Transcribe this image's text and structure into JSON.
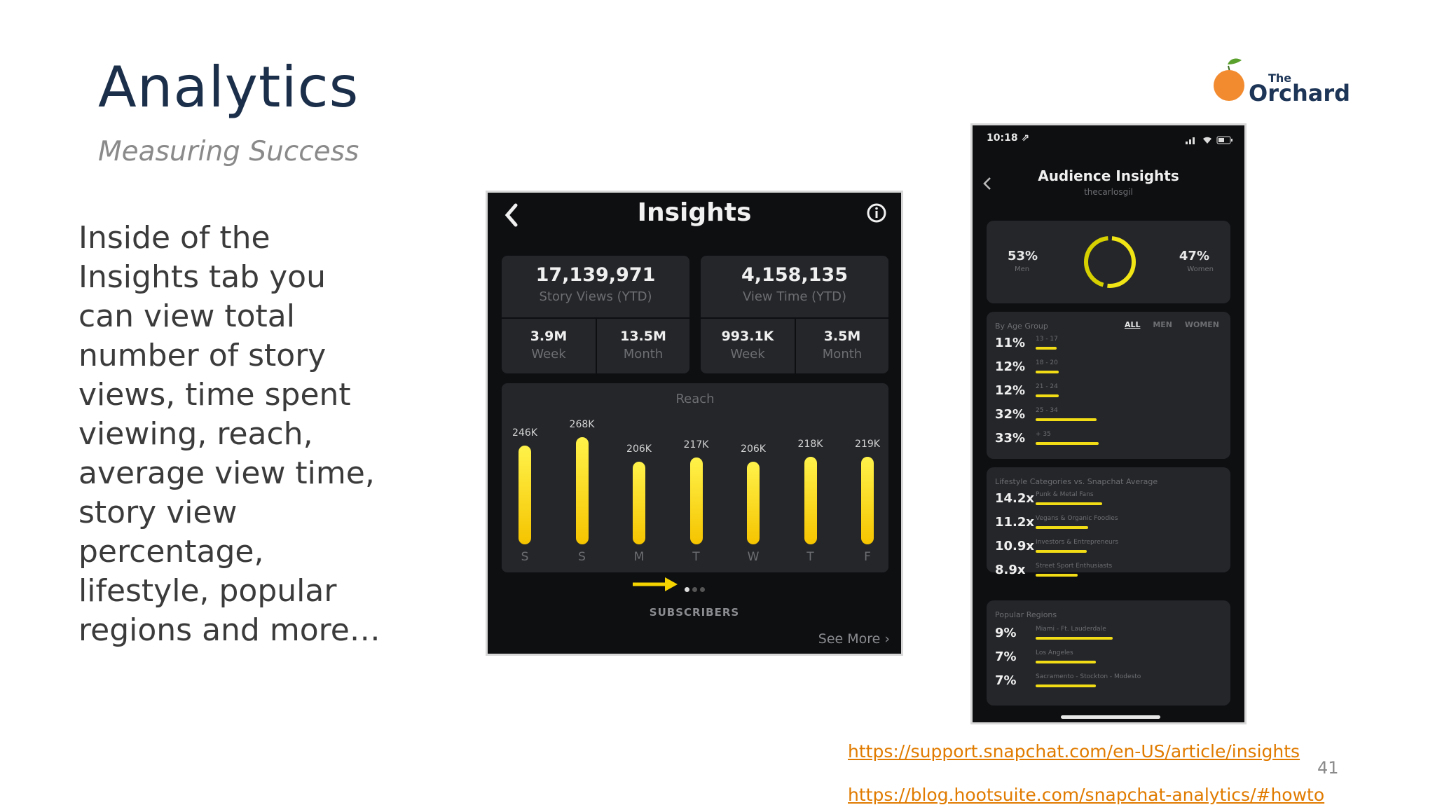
{
  "slide": {
    "title": "Analytics",
    "subtitle": "Measuring Success",
    "body": "Inside of the Insights tab you can view total number of story views, time spent viewing, reach, average view time, story view percentage, lifestyle, popular regions and more…",
    "logo_the": "The",
    "logo_main": "Orchard",
    "links": [
      "https://support.snapchat.com/en-US/article/insights",
      "https://blog.hootsuite.com/snapchat-analytics/#howto"
    ],
    "page_number": "41",
    "colors": {
      "title": "#1c2f4a",
      "link": "#e07b00",
      "accent_yellow": "#f5d400",
      "phone_bg": "#0e0f11"
    }
  },
  "insights": {
    "back_icon": "chevron-left-icon",
    "title": "Insights",
    "info_icon": "info-icon",
    "story_views": {
      "value": "17,139,971",
      "label": "Story Views (YTD)",
      "week_value": "3.9M",
      "week_label": "Week",
      "month_value": "13.5M",
      "month_label": "Month"
    },
    "view_time": {
      "value": "4,158,135",
      "label": "View Time (YTD)",
      "week_value": "993.1K",
      "week_label": "Week",
      "month_value": "3.5M",
      "month_label": "Month"
    },
    "reach_title": "Reach",
    "subscribers_label": "SUBSCRIBERS",
    "see_more": "See More ›"
  },
  "chart_data": {
    "type": "bar",
    "title": "Reach",
    "categories": [
      "S",
      "S",
      "M",
      "T",
      "W",
      "T",
      "F"
    ],
    "value_labels": [
      "246K",
      "268K",
      "206K",
      "217K",
      "206K",
      "218K",
      "219K"
    ],
    "values": [
      246,
      268,
      206,
      217,
      206,
      218,
      219
    ],
    "ylim": [
      0,
      280
    ],
    "grid": false
  },
  "audience": {
    "status_time": "10:18 ⇗",
    "title": "Audience Insights",
    "handle": "thecarlosgil",
    "men_pct": "53%",
    "men_label": "Men",
    "women_pct": "47%",
    "women_label": "Women",
    "gender_ring": {
      "men_fraction": 0.53
    },
    "age_header": "By Age Group",
    "age_filters": [
      "ALL",
      "MEN",
      "WOMEN"
    ],
    "age_groups": [
      {
        "pct": "11%",
        "label": "13 - 17",
        "fraction": 0.11
      },
      {
        "pct": "12%",
        "label": "18 - 20",
        "fraction": 0.12
      },
      {
        "pct": "12%",
        "label": "21 - 24",
        "fraction": 0.12
      },
      {
        "pct": "32%",
        "label": "25 - 34",
        "fraction": 0.32
      },
      {
        "pct": "33%",
        "label": "+ 35",
        "fraction": 0.33
      }
    ],
    "lifestyle_header": "Lifestyle Categories vs. Snapchat Average",
    "lifestyle": [
      {
        "value": "14.2x",
        "label": "Punk & Metal Fans",
        "fraction": 0.142
      },
      {
        "value": "11.2x",
        "label": "Vegans & Organic Foodies",
        "fraction": 0.112
      },
      {
        "value": "10.9x",
        "label": "Investors & Entrepreneurs",
        "fraction": 0.109
      },
      {
        "value": "8.9x",
        "label": "Street Sport Enthusiasts",
        "fraction": 0.089
      }
    ],
    "regions_header": "Popular Regions",
    "regions": [
      {
        "pct": "9%",
        "label": "Miami - Ft. Lauderdale",
        "fraction": 0.09
      },
      {
        "pct": "7%",
        "label": "Los Angeles",
        "fraction": 0.07
      },
      {
        "pct": "7%",
        "label": "Sacramento - Stockton - Modesto",
        "fraction": 0.07
      }
    ]
  }
}
